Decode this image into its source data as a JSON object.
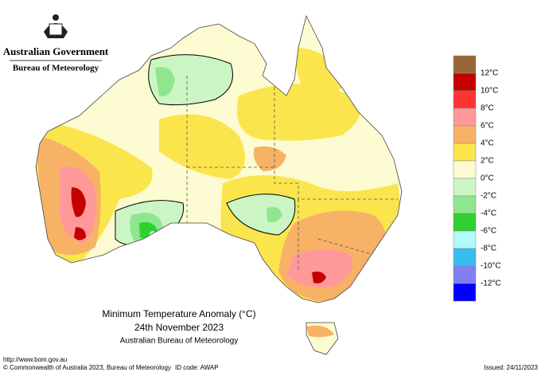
{
  "header": {
    "government": "Australian Government",
    "bureau": "Bureau of Meteorology"
  },
  "map": {
    "title": "Minimum Temperature Anomaly (°C)",
    "date": "24th November 2023",
    "source": "Australian Bureau of Meteorology"
  },
  "legend": {
    "labels": [
      "12°C",
      "10°C",
      "8°C",
      "6°C",
      "4°C",
      "2°C",
      "0°C",
      "-2°C",
      "-4°C",
      "-6°C",
      "-8°C",
      "-10°C",
      "-12°C"
    ],
    "colors": [
      "#9a6637",
      "#c40000",
      "#ff3333",
      "#ff9999",
      "#f7b266",
      "#fbe54d",
      "#fdfbd1",
      "#ccf5c4",
      "#8fe68f",
      "#2fd02f",
      "#b3fafa",
      "#38bdf0",
      "#8080f2",
      "#0000ff"
    ]
  },
  "footer": {
    "url": "http://www.bom.gov.au",
    "copyright": "© Commonwealth of Australia 2023, Bureau of Meteorology",
    "id": "ID code: AWAP",
    "issued": "Issued: 24/11/2023"
  }
}
